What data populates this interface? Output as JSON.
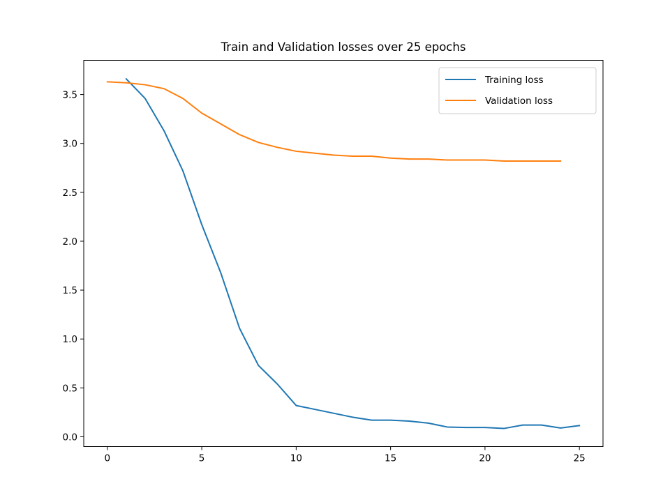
{
  "chart_data": {
    "type": "line",
    "title": "Train and Validation losses over 25 epochs",
    "xlabel": "",
    "ylabel": "",
    "xlim": [
      -1.25,
      26.25
    ],
    "ylim": [
      -0.1,
      3.85
    ],
    "xticks": [
      0,
      5,
      10,
      15,
      20,
      25
    ],
    "yticks": [
      0.0,
      0.5,
      1.0,
      1.5,
      2.0,
      2.5,
      3.0,
      3.5
    ],
    "xtick_labels": [
      "0",
      "5",
      "10",
      "15",
      "20",
      "25"
    ],
    "ytick_labels": [
      "0.0",
      "0.5",
      "1.0",
      "1.5",
      "2.0",
      "2.5",
      "3.0",
      "3.5"
    ],
    "grid": false,
    "legend": "top-right",
    "series": [
      {
        "name": "Training loss",
        "color": "#1f77b4",
        "x": [
          1,
          2,
          3,
          4,
          5,
          6,
          7,
          8,
          9,
          10,
          11,
          12,
          13,
          14,
          15,
          16,
          17,
          18,
          19,
          20,
          21,
          22,
          23,
          24,
          25
        ],
        "y": [
          3.66,
          3.46,
          3.13,
          2.72,
          2.17,
          1.68,
          1.11,
          0.73,
          0.54,
          0.32,
          0.28,
          0.24,
          0.2,
          0.17,
          0.17,
          0.16,
          0.14,
          0.1,
          0.095,
          0.095,
          0.085,
          0.12,
          0.12,
          0.09,
          0.115
        ]
      },
      {
        "name": "Validation loss",
        "color": "#ff7f0e",
        "x": [
          0,
          1,
          2,
          3,
          4,
          5,
          6,
          7,
          8,
          9,
          10,
          11,
          12,
          13,
          14,
          15,
          16,
          17,
          18,
          19,
          20,
          21,
          22,
          23,
          24
        ],
        "y": [
          3.63,
          3.62,
          3.6,
          3.56,
          3.46,
          3.31,
          3.2,
          3.09,
          3.01,
          2.96,
          2.92,
          2.9,
          2.88,
          2.87,
          2.87,
          2.85,
          2.84,
          2.84,
          2.83,
          2.83,
          2.83,
          2.82,
          2.82,
          2.82,
          2.82
        ]
      }
    ]
  }
}
